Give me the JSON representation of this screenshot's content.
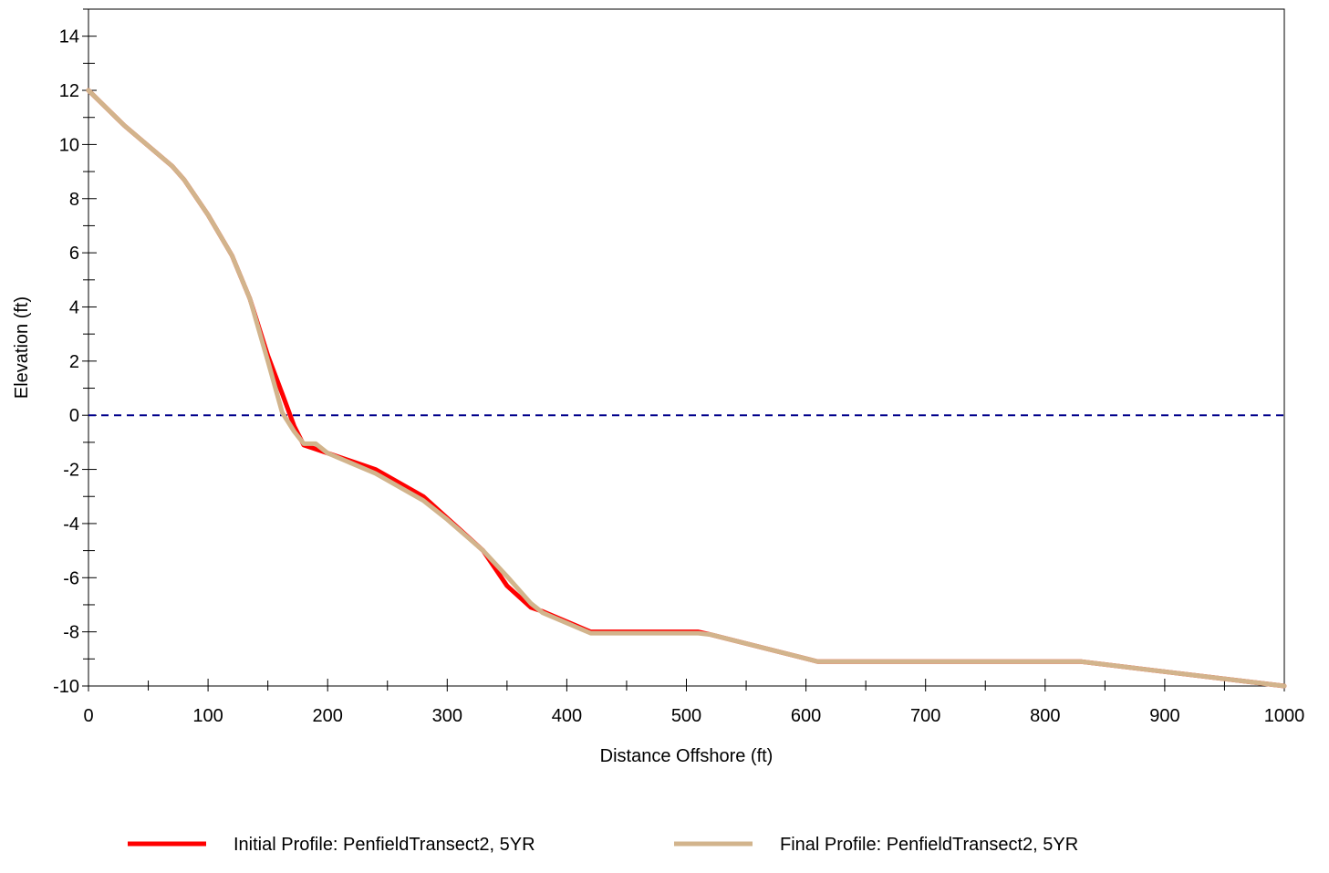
{
  "chart_data": {
    "type": "line",
    "title": "",
    "xlabel": "Distance Offshore (ft)",
    "ylabel": "Elevation (ft)",
    "xlim": [
      0,
      1000
    ],
    "ylim": [
      -10,
      15
    ],
    "x_ticks": [
      0,
      100,
      200,
      300,
      400,
      500,
      600,
      700,
      800,
      900,
      1000
    ],
    "y_ticks": [
      -10,
      -8,
      -6,
      -4,
      -2,
      0,
      2,
      4,
      6,
      8,
      10,
      12,
      14
    ],
    "grid": false,
    "legend_placement": "bottom",
    "reference_line": {
      "y": 0,
      "style": "dashed",
      "color": "#00008B"
    },
    "series": [
      {
        "name": "Initial Profile: PenfieldTransect2, 5YR",
        "color": "#FF0000",
        "x": [
          0,
          30,
          70,
          80,
          100,
          120,
          135,
          150,
          162,
          172,
          180,
          190,
          200,
          240,
          280,
          300,
          330,
          350,
          370,
          380,
          420,
          510,
          520,
          610,
          830,
          1000
        ],
        "y": [
          12,
          10.7,
          9.2,
          8.7,
          7.4,
          5.9,
          4.3,
          2.2,
          0.8,
          -0.4,
          -1.1,
          -1.25,
          -1.4,
          -2.0,
          -3.0,
          -3.8,
          -5.0,
          -6.3,
          -7.1,
          -7.25,
          -8.0,
          -8.0,
          -8.1,
          -9.1,
          -9.1,
          -10.0
        ]
      },
      {
        "name": "Final Profile: PenfieldTransect2, 5YR",
        "color": "#D2B48C",
        "x": [
          0,
          30,
          70,
          80,
          100,
          120,
          135,
          150,
          162,
          172,
          180,
          190,
          200,
          240,
          280,
          300,
          330,
          350,
          370,
          380,
          420,
          510,
          520,
          610,
          830,
          1000
        ],
        "y": [
          12,
          10.7,
          9.2,
          8.7,
          7.4,
          5.9,
          4.3,
          2.0,
          0.1,
          -0.6,
          -1.05,
          -1.05,
          -1.4,
          -2.15,
          -3.15,
          -3.85,
          -5.0,
          -5.95,
          -6.95,
          -7.3,
          -8.05,
          -8.05,
          -8.1,
          -9.1,
          -9.1,
          -10.0
        ]
      }
    ]
  }
}
